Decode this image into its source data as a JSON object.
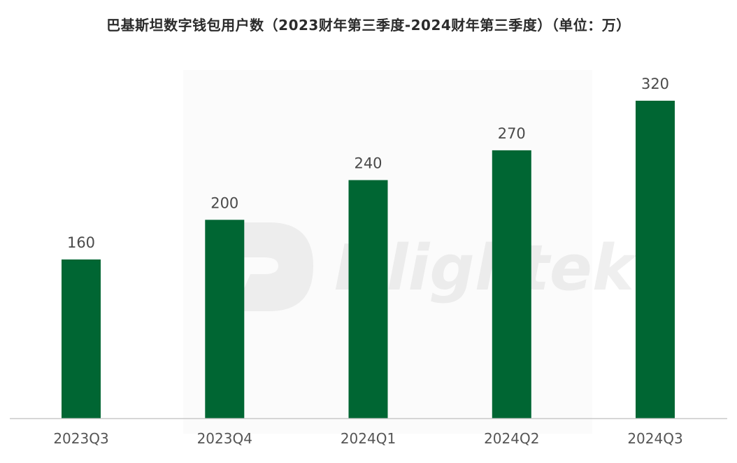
{
  "chart_data": {
    "type": "bar",
    "title": "巴基斯坦数字钱包用户数（2023财年第三季度-2024财年第三季度）（单位：万）",
    "categories": [
      "2023Q3",
      "2023Q4",
      "2024Q1",
      "2024Q2",
      "2024Q3"
    ],
    "values": [
      160,
      200,
      240,
      270,
      320
    ],
    "xlabel": "",
    "ylabel": "",
    "ylim": [
      0,
      350
    ],
    "grid": false,
    "legend": "none",
    "bar_color": "#006633",
    "axis_color": "#c8c8c8"
  },
  "watermark": {
    "text": "Dlightek"
  }
}
